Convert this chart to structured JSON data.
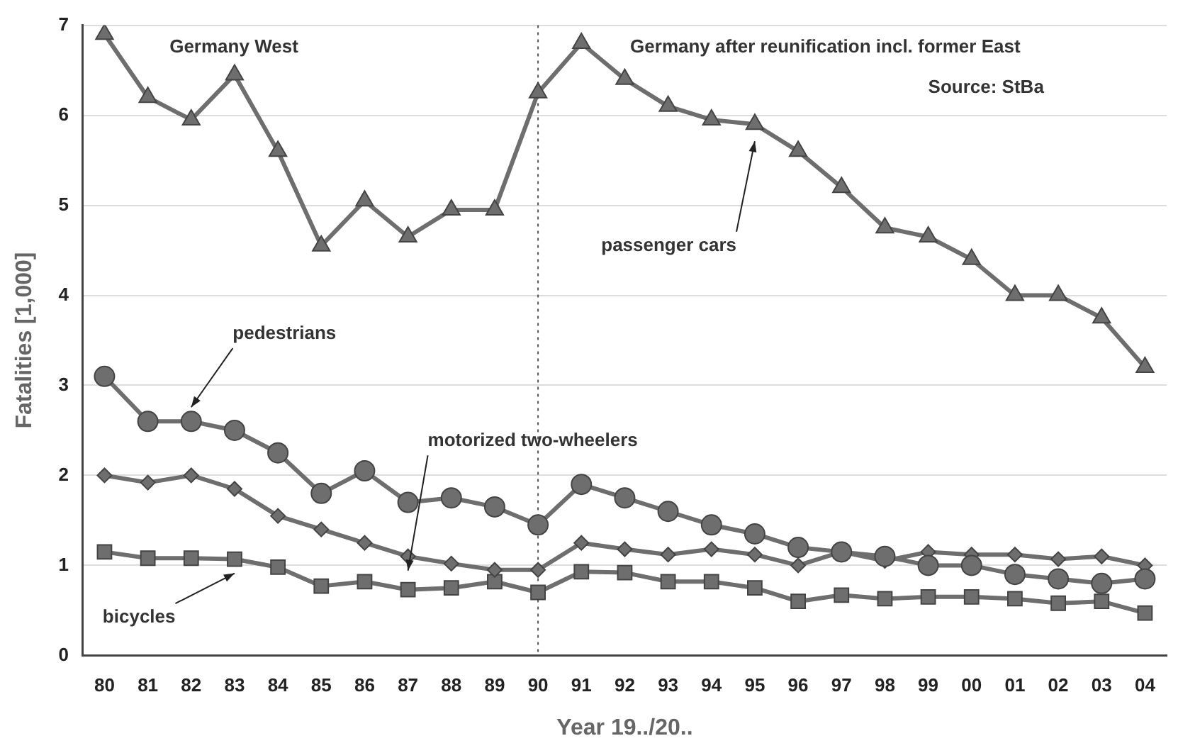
{
  "chart_data": {
    "type": "line",
    "xlabel": "Year 19../20..",
    "ylabel": "Fatalities [1,000]",
    "categories": [
      "80",
      "81",
      "82",
      "83",
      "84",
      "85",
      "86",
      "87",
      "88",
      "89",
      "90",
      "91",
      "92",
      "93",
      "94",
      "95",
      "96",
      "97",
      "98",
      "99",
      "00",
      "01",
      "02",
      "03",
      "04"
    ],
    "series": [
      {
        "name": "passenger cars",
        "color": "#6e6e6e",
        "marker": "triangle",
        "values": [
          6.9,
          6.2,
          5.95,
          6.45,
          5.6,
          4.55,
          5.05,
          4.65,
          4.95,
          4.95,
          6.25,
          6.8,
          6.4,
          6.1,
          5.95,
          5.9,
          5.6,
          5.2,
          4.75,
          4.65,
          4.4,
          4.0,
          4.0,
          3.75,
          3.2
        ]
      },
      {
        "name": "pedestrians",
        "color": "#6e6e6e",
        "marker": "circle",
        "values": [
          3.1,
          2.6,
          2.6,
          2.5,
          2.25,
          1.8,
          2.05,
          1.7,
          1.75,
          1.65,
          1.45,
          1.9,
          1.75,
          1.6,
          1.45,
          1.35,
          1.2,
          1.15,
          1.1,
          1.0,
          1.0,
          0.9,
          0.85,
          0.8,
          0.85
        ]
      },
      {
        "name": "motorized two-wheelers",
        "color": "#6e6e6e",
        "marker": "diamond",
        "values": [
          2.0,
          1.92,
          2.0,
          1.85,
          1.55,
          1.4,
          1.25,
          1.1,
          1.02,
          0.95,
          0.95,
          1.25,
          1.18,
          1.12,
          1.18,
          1.12,
          1.0,
          1.15,
          1.05,
          1.15,
          1.12,
          1.12,
          1.07,
          1.1,
          1.0
        ]
      },
      {
        "name": "bicycles",
        "color": "#6e6e6e",
        "marker": "square",
        "values": [
          1.15,
          1.08,
          1.08,
          1.07,
          0.98,
          0.77,
          0.82,
          0.73,
          0.75,
          0.82,
          0.7,
          0.93,
          0.92,
          0.82,
          0.82,
          0.75,
          0.6,
          0.67,
          0.63,
          0.65,
          0.65,
          0.63,
          0.58,
          0.6,
          0.47
        ]
      }
    ],
    "ylim": [
      0,
      7
    ],
    "yticks": [
      0,
      1,
      2,
      3,
      4,
      5,
      6,
      7
    ],
    "grid": "y",
    "legend": false,
    "line_style": "solid",
    "ref_lines": [
      {
        "axis": "x",
        "value": "90",
        "line_style": "dotted",
        "color": "#555555"
      }
    ],
    "annotations": [
      "Germany West",
      "Germany after reunification incl. former East",
      "Source: StBa"
    ]
  }
}
